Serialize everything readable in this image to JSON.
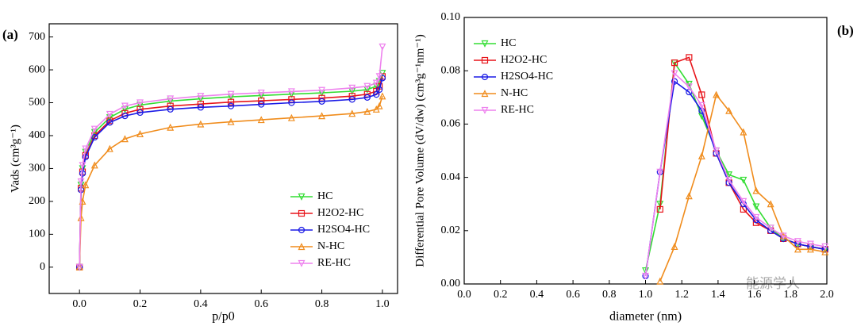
{
  "chart_data": [
    {
      "type": "line",
      "panel_label": "(a)",
      "x_label": "p/p0",
      "y_label": "Vads (cm³g⁻¹)",
      "x": [
        0,
        0.005,
        0.01,
        0.02,
        0.05,
        0.1,
        0.15,
        0.2,
        0.3,
        0.4,
        0.5,
        0.6,
        0.7,
        0.8,
        0.9,
        0.95,
        0.98,
        0.99,
        1.0
      ],
      "xlim": [
        -0.1,
        1.05
      ],
      "ylim": [
        -80,
        740
      ],
      "xticks": [
        {
          "value": 0,
          "label": "0.0"
        },
        0.2,
        0.4,
        0.6,
        0.8,
        {
          "value": 1,
          "label": "1.0"
        }
      ],
      "yticks": [
        0,
        100,
        200,
        300,
        400,
        500,
        600,
        700
      ],
      "legend": "lower right",
      "series": [
        {
          "name": "HC",
          "color": "#33dd33",
          "marker": "triangle-down",
          "values": [
            0,
            250,
            300,
            350,
            410,
            455,
            480,
            493,
            505,
            512,
            518,
            522,
            526,
            530,
            535,
            540,
            550,
            565,
            590
          ]
        },
        {
          "name": "H2O2-HC",
          "color": "#e8141a",
          "marker": "square",
          "values": [
            0,
            240,
            290,
            340,
            400,
            445,
            468,
            480,
            490,
            496,
            502,
            506,
            510,
            514,
            520,
            526,
            535,
            550,
            580
          ]
        },
        {
          "name": "H2SO4-HC",
          "color": "#1a1ae6",
          "marker": "circle",
          "values": [
            0,
            235,
            285,
            335,
            395,
            440,
            460,
            470,
            480,
            486,
            490,
            495,
            500,
            504,
            510,
            516,
            525,
            540,
            575
          ]
        },
        {
          "name": "N-HC",
          "color": "#f08c1c",
          "marker": "triangle-up",
          "values": [
            0,
            150,
            200,
            250,
            310,
            360,
            390,
            405,
            425,
            435,
            442,
            448,
            454,
            460,
            467,
            473,
            480,
            490,
            520
          ]
        },
        {
          "name": "RE-HC",
          "color": "#ee82ee",
          "marker": "triangle-down",
          "values": [
            0,
            260,
            310,
            360,
            420,
            465,
            490,
            500,
            512,
            520,
            526,
            530,
            534,
            538,
            545,
            550,
            560,
            580,
            670
          ]
        }
      ]
    },
    {
      "type": "line",
      "panel_label": "(b)",
      "x_label": "diameter (nm)",
      "y_label": "Differential Pore Volume (dV/dw) (cm³g⁻¹nm⁻¹)",
      "x": [
        1.0,
        1.08,
        1.16,
        1.24,
        1.31,
        1.39,
        1.46,
        1.54,
        1.61,
        1.69,
        1.76,
        1.84,
        1.91,
        1.99
      ],
      "xlim": [
        0,
        2
      ],
      "ylim": [
        0,
        0.1
      ],
      "xticks": [
        {
          "value": 0,
          "label": "0.0"
        },
        0.2,
        0.4,
        0.6,
        0.8,
        {
          "value": 1,
          "label": "1.0"
        },
        1.2,
        1.4,
        1.6,
        1.8,
        {
          "value": 2,
          "label": "2.0"
        }
      ],
      "yticks": [
        {
          "value": 0,
          "label": "0.00"
        },
        0.02,
        0.04,
        0.06,
        0.08,
        {
          "value": 0.1,
          "label": "0.10"
        }
      ],
      "legend": "upper left",
      "series": [
        {
          "name": "HC",
          "color": "#33dd33",
          "marker": "triangle-down",
          "values": [
            0.005,
            0.03,
            0.083,
            0.075,
            0.063,
            0.05,
            0.041,
            0.039,
            0.029,
            0.021,
            0.017,
            0.015,
            0.014,
            0.013
          ]
        },
        {
          "name": "H2O2-HC",
          "color": "#e8141a",
          "marker": "square",
          "values": [
            null,
            0.028,
            0.083,
            0.085,
            0.071,
            0.049,
            0.038,
            0.028,
            0.023,
            0.02,
            0.017,
            0.015,
            0.014,
            0.013
          ]
        },
        {
          "name": "H2SO4-HC",
          "color": "#1a1ae6",
          "marker": "circle",
          "values": [
            0.003,
            0.042,
            0.076,
            0.072,
            0.065,
            0.049,
            0.038,
            0.03,
            0.024,
            0.02,
            0.017,
            0.015,
            0.014,
            0.013
          ]
        },
        {
          "name": "N-HC",
          "color": "#f08c1c",
          "marker": "triangle-up",
          "values": [
            null,
            0.001,
            0.014,
            0.033,
            0.048,
            0.071,
            0.065,
            0.057,
            0.035,
            0.03,
            0.018,
            0.013,
            0.013,
            0.012
          ]
        },
        {
          "name": "RE-HC",
          "color": "#ee82ee",
          "marker": "triangle-down",
          "values": [
            0.003,
            0.042,
            0.079,
            0.074,
            0.067,
            0.05,
            0.039,
            0.031,
            0.025,
            0.021,
            0.018,
            0.016,
            0.015,
            0.014
          ]
        }
      ]
    }
  ],
  "watermark": "能源学人"
}
